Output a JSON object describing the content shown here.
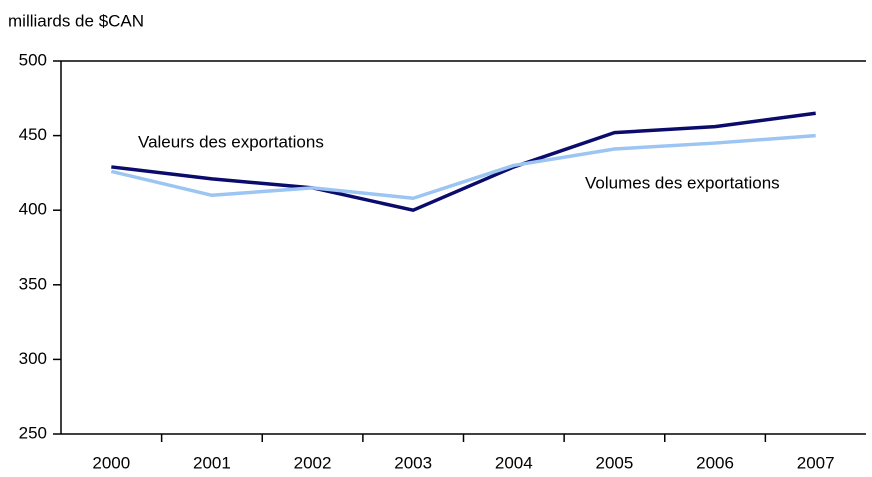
{
  "chart_data": {
    "type": "line",
    "y_axis_label": "milliards de $CAN",
    "categories": [
      "2000",
      "2001",
      "2002",
      "2003",
      "2004",
      "2005",
      "2006",
      "2007"
    ],
    "series": [
      {
        "name": "Valeurs des exportations",
        "color": "#0b0b6b",
        "values": [
          429,
          421,
          415,
          400,
          429,
          452,
          456,
          465
        ]
      },
      {
        "name": "Volumes des exportations",
        "color": "#9cc5f3",
        "values": [
          426,
          410,
          415,
          408,
          430,
          441,
          445,
          450
        ]
      }
    ],
    "ylim": [
      250,
      500
    ],
    "yticks": [
      250,
      300,
      350,
      400,
      450,
      500
    ],
    "grid": false
  }
}
